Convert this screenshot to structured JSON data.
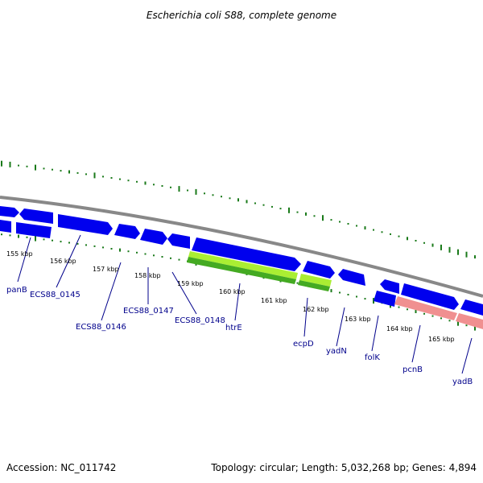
{
  "title": "Escherichia coli S88, complete genome",
  "footer": {
    "accession": "Accession: NC_011742",
    "topology": "Topology: circular; Length: 5,032,268 bp; Genes: 4,894"
  },
  "colors": {
    "backbone": "#888888",
    "cds": "#0000ee",
    "rna_green": "#44aa22",
    "rna_lime": "#aaee33",
    "pink": "#f09090",
    "gc_ticks": "#1a7a1a",
    "label": "#00008b"
  },
  "kbp_ticks": [
    {
      "label": "155 kbp"
    },
    {
      "label": "156 kbp"
    },
    {
      "label": "157 kbp"
    },
    {
      "label": "158 kbp"
    },
    {
      "label": "159 kbp"
    },
    {
      "label": "160 kbp"
    },
    {
      "label": "161 kbp"
    },
    {
      "label": "162 kbp"
    },
    {
      "label": "163 kbp"
    },
    {
      "label": "164 kbp"
    },
    {
      "label": "165 kbp"
    }
  ],
  "genes": [
    {
      "label": "panB"
    },
    {
      "label": "ECS88_0145"
    },
    {
      "label": "ECS88_0146"
    },
    {
      "label": "ECS88_0147"
    },
    {
      "label": "ECS88_0148"
    },
    {
      "label": "htrE"
    },
    {
      "label": "ecpD"
    },
    {
      "label": "yadN"
    },
    {
      "label": "folK"
    },
    {
      "label": "pcnB"
    },
    {
      "label": "yadB"
    }
  ]
}
